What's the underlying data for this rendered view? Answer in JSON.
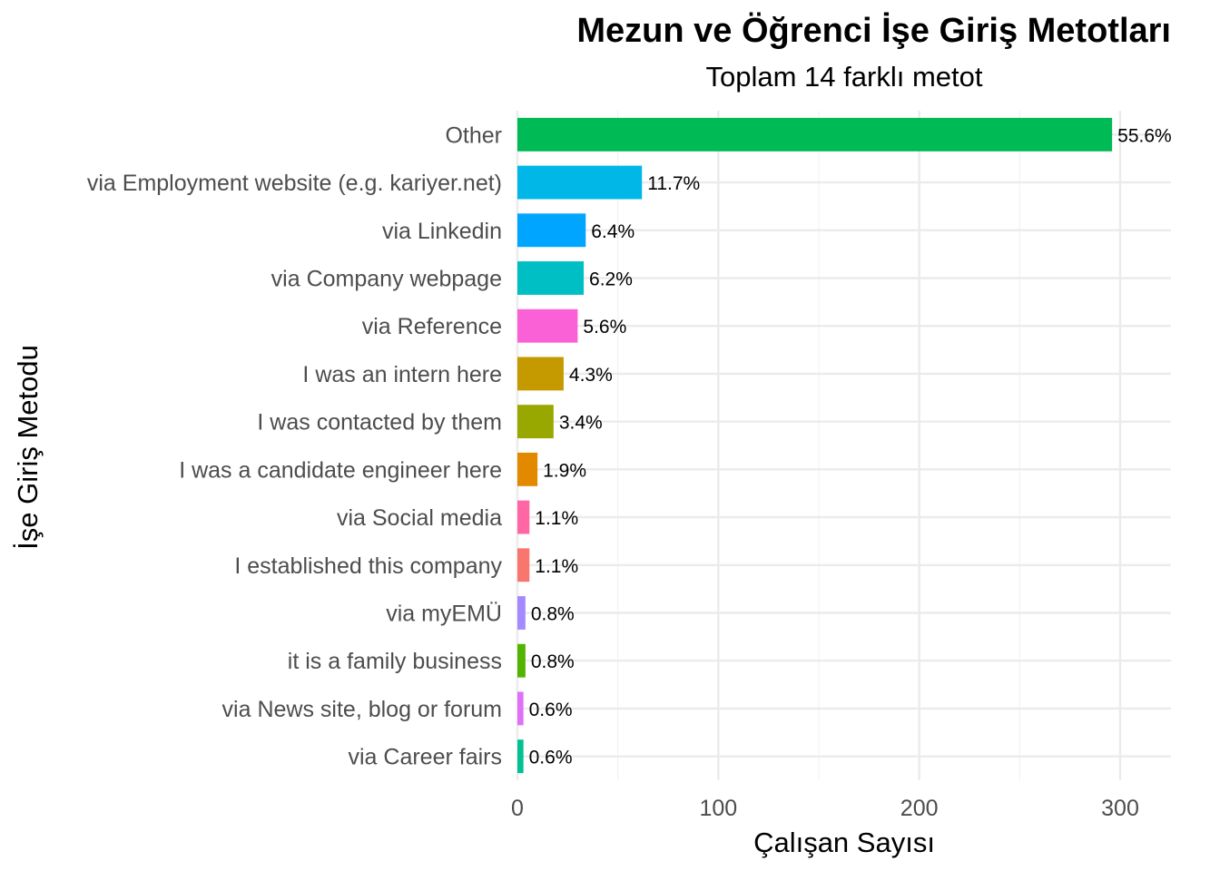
{
  "chart_data": {
    "type": "bar",
    "orientation": "horizontal",
    "title": "Mezun ve Öğrenci İşe Giriş Metotları",
    "subtitle": "Toplam 14 farklı metot",
    "xlabel": "Çalışan Sayısı",
    "ylabel": "İşe Giriş Metodu",
    "xlim": [
      0,
      325
    ],
    "xticks": [
      0,
      100,
      200,
      300
    ],
    "grid": true,
    "legend": "none",
    "categories": [
      "Other",
      "via Employment website (e.g. kariyer.net)",
      "via Linkedin",
      "via Company webpage",
      "via Reference",
      "I was an intern here",
      "I was contacted by them",
      "I was a candidate engineer here",
      "via Social media",
      "I established this company",
      "via myEMÜ",
      "it is a family business",
      "via News site, blog or forum",
      "via Career fairs"
    ],
    "values": [
      296,
      62,
      34,
      33,
      30,
      23,
      18,
      10,
      6,
      6,
      4,
      4,
      3,
      3
    ],
    "labels": [
      "55.6%",
      "11.7%",
      "6.4%",
      "6.2%",
      "5.6%",
      "4.3%",
      "3.4%",
      "1.9%",
      "1.1%",
      "1.1%",
      "0.8%",
      "0.8%",
      "0.6%",
      "0.6%"
    ],
    "colors": [
      "#00BA56",
      "#00B7E8",
      "#00A5FF",
      "#00BFC4",
      "#FB61D7",
      "#C49A00",
      "#99A800",
      "#E38900",
      "#FF67A4",
      "#F8766D",
      "#A58AFF",
      "#53B400",
      "#DF70F8",
      "#00C094"
    ]
  }
}
